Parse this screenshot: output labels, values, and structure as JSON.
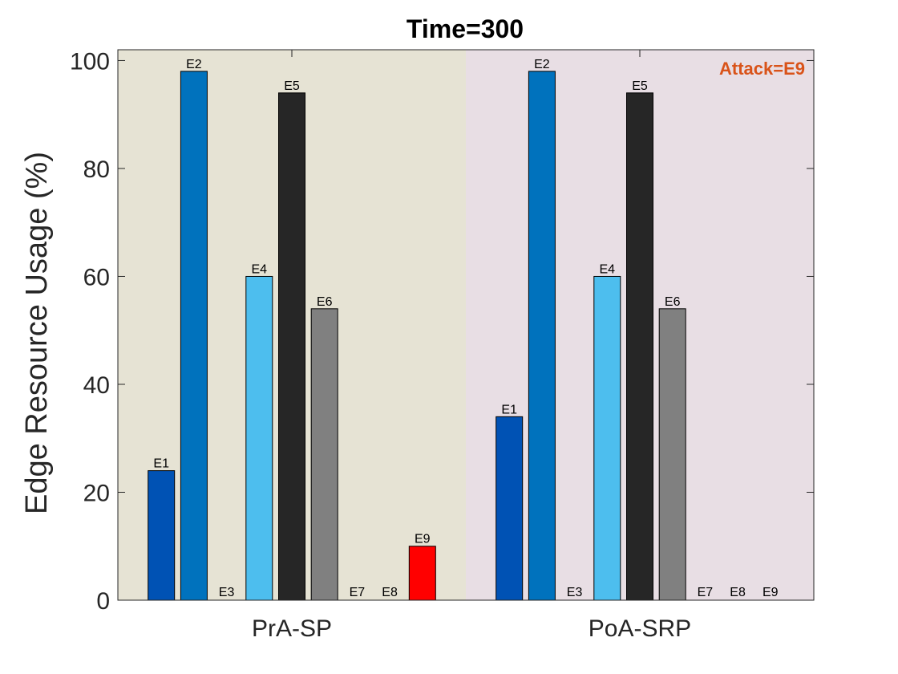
{
  "chart_data": {
    "type": "bar",
    "title": "Time=300",
    "xlabel": "",
    "ylabel": "Edge Resource Usage (%)",
    "ylim": [
      0,
      102
    ],
    "yticks": [
      0,
      20,
      40,
      60,
      80,
      100
    ],
    "grid": false,
    "annotation": {
      "text": "Attack=E9",
      "color": "#D95319"
    },
    "groups": [
      {
        "name": "PrA-SP",
        "background": "#E6E3D4",
        "bars": [
          {
            "label": "E1",
            "value": 24,
            "color": "#0052B4"
          },
          {
            "label": "E2",
            "value": 98,
            "color": "#0072BD"
          },
          {
            "label": "E3",
            "value": 0,
            "color": "#1A7FD0"
          },
          {
            "label": "E4",
            "value": 60,
            "color": "#4DBEEE"
          },
          {
            "label": "E5",
            "value": 94,
            "color": "#262626"
          },
          {
            "label": "E6",
            "value": 54,
            "color": "#808080"
          },
          {
            "label": "E7",
            "value": 0,
            "color": "#999999"
          },
          {
            "label": "E8",
            "value": 0,
            "color": "#AAAAAA"
          },
          {
            "label": "E9",
            "value": 10,
            "color": "#FF0000"
          }
        ]
      },
      {
        "name": "PoA-SRP",
        "background": "#E8DEE4",
        "bars": [
          {
            "label": "E1",
            "value": 34,
            "color": "#0052B4"
          },
          {
            "label": "E2",
            "value": 98,
            "color": "#0072BD"
          },
          {
            "label": "E3",
            "value": 0,
            "color": "#1A7FD0"
          },
          {
            "label": "E4",
            "value": 60,
            "color": "#4DBEEE"
          },
          {
            "label": "E5",
            "value": 94,
            "color": "#262626"
          },
          {
            "label": "E6",
            "value": 54,
            "color": "#808080"
          },
          {
            "label": "E7",
            "value": 0,
            "color": "#999999"
          },
          {
            "label": "E8",
            "value": 0,
            "color": "#AAAAAA"
          },
          {
            "label": "E9",
            "value": 0,
            "color": "#FF0000"
          }
        ]
      }
    ]
  }
}
